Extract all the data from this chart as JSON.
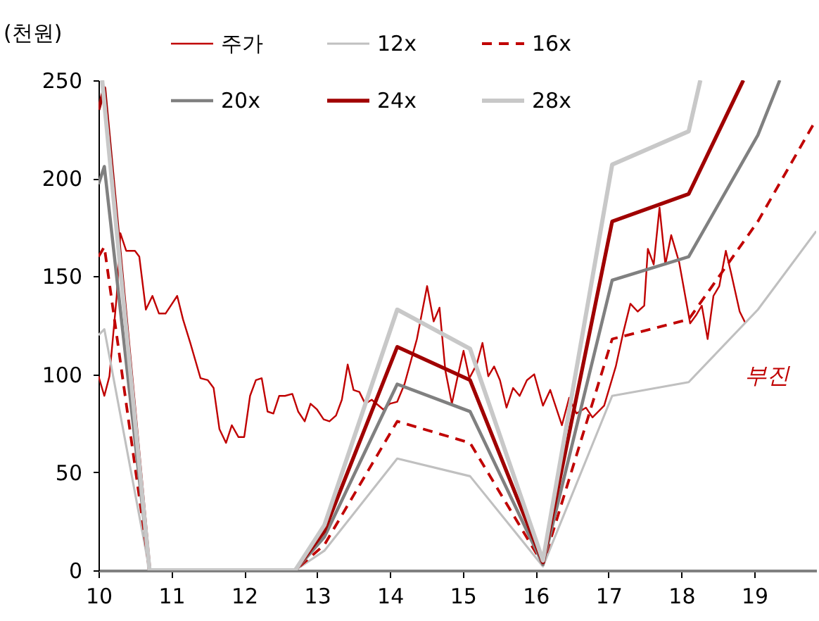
{
  "chart_data": {
    "type": "line",
    "ylabel": "(천원)",
    "xlim": [
      10,
      19.85
    ],
    "xticks": [
      10,
      11,
      12,
      13,
      14,
      15,
      16,
      17,
      18,
      19
    ],
    "ylim": [
      0,
      250
    ],
    "yticks": [
      0,
      50,
      100,
      150,
      200,
      250
    ],
    "grid": false,
    "legend": "top",
    "line_style": "solid",
    "marker": "none",
    "annotations": [
      "부진"
    ],
    "series": [
      {
        "name": "주가",
        "color": "#c00000",
        "x": [
          10.0,
          10.08,
          10.15,
          10.25,
          10.3,
          10.38,
          10.5,
          10.56,
          10.65,
          10.74,
          10.83,
          10.92,
          11.08,
          11.16,
          11.26,
          11.4,
          11.5,
          11.58,
          11.66,
          11.75,
          11.83,
          11.92,
          12.0,
          12.08,
          12.16,
          12.24,
          12.32,
          12.4,
          12.48,
          12.56,
          12.66,
          12.74,
          12.83,
          12.91,
          13.0,
          13.09,
          13.17,
          13.26,
          13.34,
          13.42,
          13.5,
          13.58,
          13.66,
          13.75,
          13.91,
          14.0,
          14.1,
          14.2,
          14.37,
          14.51,
          14.6,
          14.68,
          14.76,
          14.85,
          14.93,
          15.01,
          15.09,
          15.19,
          15.27,
          15.35,
          15.43,
          15.51,
          15.6,
          15.69,
          15.78,
          15.88,
          15.98,
          16.1,
          16.2,
          16.36,
          16.46,
          16.56,
          16.69,
          16.78,
          16.94,
          17.1,
          17.2,
          17.3,
          17.4,
          17.49,
          17.54,
          17.62,
          17.7,
          17.78,
          17.86,
          17.97,
          18.12,
          18.2,
          18.28,
          18.36,
          18.44,
          18.52,
          18.61,
          18.68,
          18.8,
          18.88
        ],
        "values": [
          99,
          89,
          99,
          140,
          172,
          163,
          163,
          160,
          133,
          140,
          131,
          131,
          140,
          128,
          116,
          98,
          97,
          93,
          72,
          65,
          74,
          68,
          68,
          89,
          97,
          98,
          81,
          80,
          89,
          89,
          90,
          81,
          76,
          85,
          82,
          77,
          76,
          79,
          87,
          105,
          92,
          91,
          85,
          87,
          82,
          85,
          86,
          95,
          118,
          145,
          127,
          134,
          102,
          85,
          99,
          112,
          98,
          105,
          116,
          99,
          104,
          97,
          83,
          93,
          89,
          97,
          100,
          84,
          92,
          74,
          88,
          80,
          83,
          78,
          84,
          104,
          121,
          136,
          132,
          135,
          164,
          156,
          185,
          156,
          171,
          157,
          126,
          130,
          135,
          118,
          140,
          145,
          163,
          152,
          132,
          126
        ]
      },
      {
        "name": "12x",
        "color": "#c0c0c0",
        "x": [
          10.0,
          10.08,
          10.7,
          12.7,
          13.1,
          14.1,
          15.1,
          16.1,
          17.05,
          18.1,
          19.05,
          19.85
        ],
        "values": [
          120,
          123,
          0,
          0,
          10,
          57,
          48,
          2,
          89,
          96,
          133,
          173
        ]
      },
      {
        "name": "16x",
        "color": "#c00000",
        "line_style": "dashed",
        "x": [
          10.0,
          10.08,
          10.7,
          12.7,
          13.1,
          14.1,
          15.1,
          16.1,
          17.05,
          18.1,
          19.05,
          19.85
        ],
        "values": [
          160,
          165,
          0,
          0,
          13,
          76,
          65,
          3,
          118,
          128,
          178,
          230
        ]
      },
      {
        "name": "20x",
        "color": "#808080",
        "x": [
          10.0,
          10.08,
          10.7,
          12.7,
          13.1,
          14.1,
          15.1,
          16.1,
          17.05,
          18.1,
          19.05,
          19.35
        ],
        "values": [
          197,
          206,
          0,
          0,
          17,
          95,
          81,
          3,
          148,
          160,
          222,
          250
        ]
      },
      {
        "name": "24x",
        "color": "#a00000",
        "x": [
          10.0,
          10.08,
          10.7,
          12.7,
          13.1,
          14.1,
          15.1,
          16.1,
          17.05,
          18.1,
          18.85
        ],
        "values": [
          235,
          246,
          0,
          0,
          20,
          114,
          97,
          4,
          178,
          192,
          250
        ]
      },
      {
        "name": "28x",
        "color": "#c8c8c8",
        "x": [
          10.05,
          10.7,
          12.7,
          13.1,
          14.1,
          15.1,
          16.1,
          17.05,
          18.1,
          18.26
        ],
        "values": [
          250,
          0,
          0,
          23,
          133,
          113,
          5,
          207,
          224,
          250
        ]
      }
    ]
  }
}
